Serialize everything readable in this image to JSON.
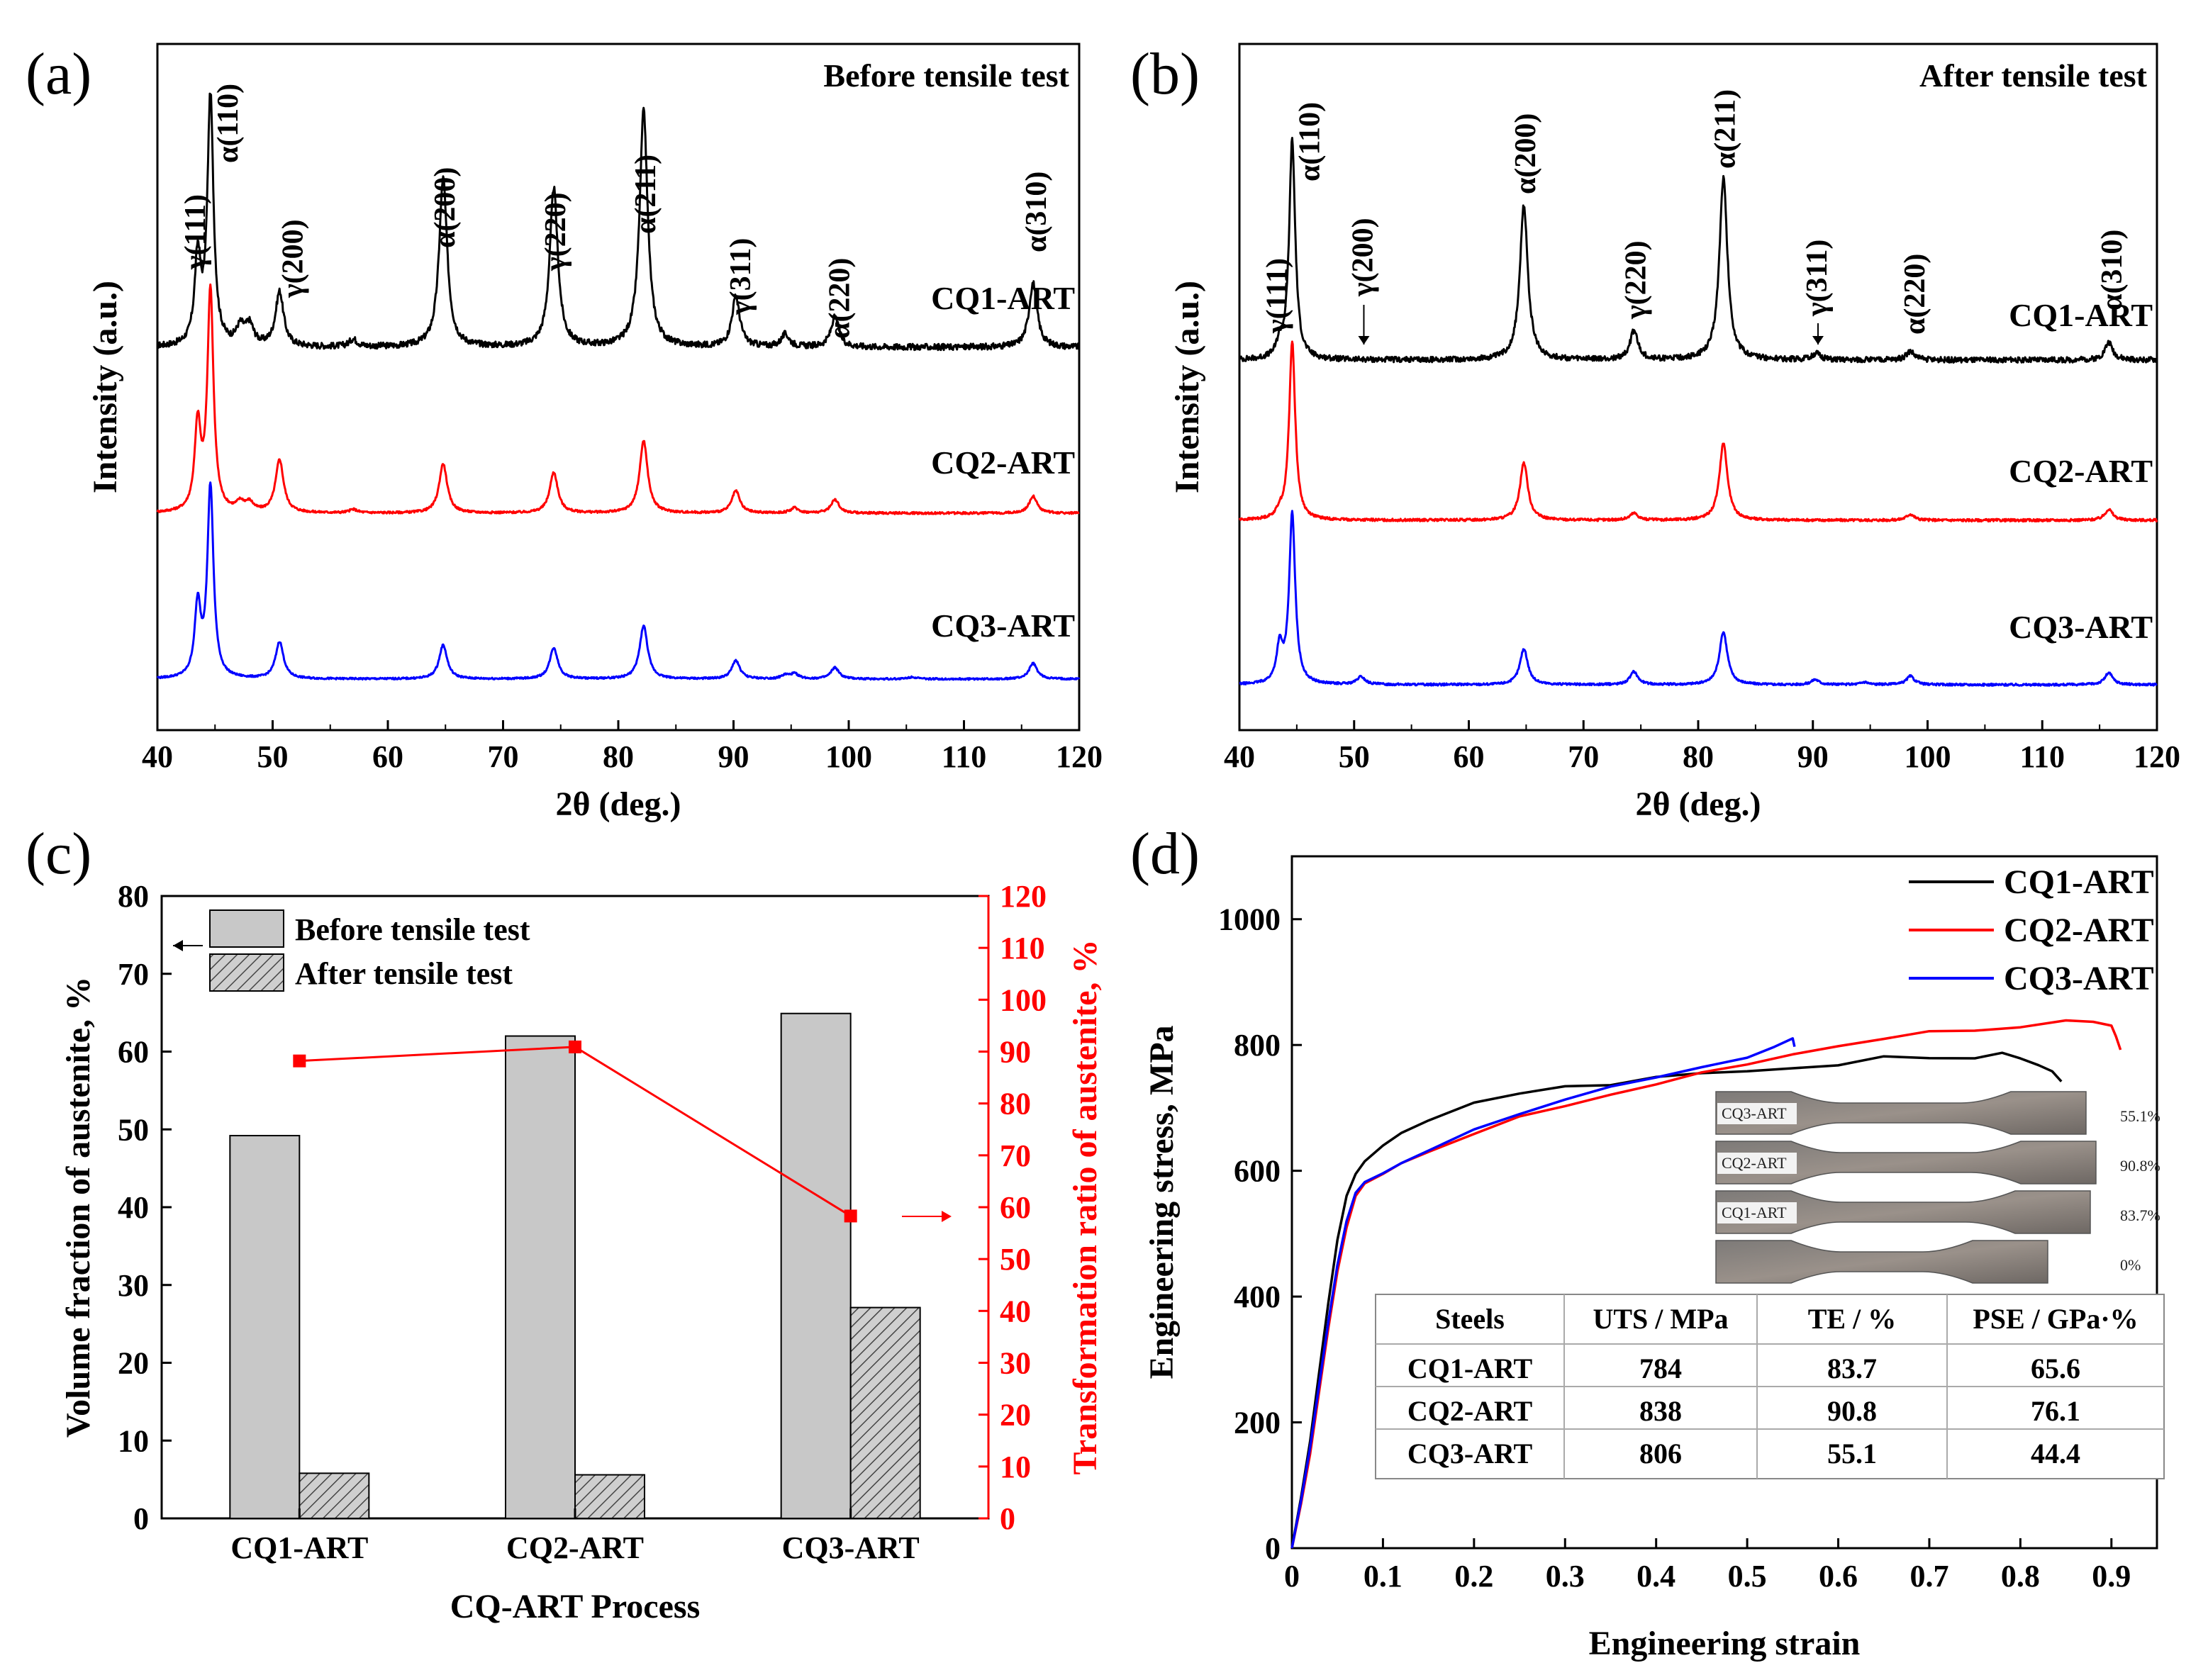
{
  "figure": {
    "panel_letters": [
      "(a)",
      "(b)",
      "(c)",
      "(d)"
    ]
  },
  "chart_data": [
    {
      "id": "a",
      "type": "line",
      "title": "Before tensile test",
      "xlabel": "2θ (deg.)",
      "ylabel": "Intensity (a.u.)",
      "xlim": [
        40,
        120
      ],
      "xticks": [
        40,
        50,
        60,
        70,
        80,
        90,
        100,
        110,
        120
      ],
      "colors": {
        "CQ1-ART": "#000000",
        "CQ2-ART": "#ff0000",
        "CQ3-ART": "#0000ff"
      },
      "series": [
        {
          "name": "CQ1-ART",
          "peaks": [
            [
              43.5,
              0.35
            ],
            [
              44.6,
              1.0
            ],
            [
              47.2,
              0.07
            ],
            [
              48.0,
              0.08
            ],
            [
              50.6,
              0.22
            ],
            [
              57.0,
              0.03
            ],
            [
              64.8,
              0.68
            ],
            [
              74.4,
              0.64
            ],
            [
              82.2,
              0.95
            ],
            [
              90.2,
              0.2
            ],
            [
              94.5,
              0.05
            ],
            [
              98.8,
              0.12
            ],
            [
              116.0,
              0.26
            ]
          ]
        },
        {
          "name": "CQ2-ART",
          "peaks": [
            [
              43.5,
              1.0
            ],
            [
              44.6,
              2.6
            ],
            [
              47.2,
              0.1
            ],
            [
              48.0,
              0.1
            ],
            [
              50.6,
              0.62
            ],
            [
              57.0,
              0.04
            ],
            [
              64.8,
              0.58
            ],
            [
              74.4,
              0.48
            ],
            [
              82.2,
              0.85
            ],
            [
              90.2,
              0.26
            ],
            [
              95.3,
              0.06
            ],
            [
              98.8,
              0.16
            ],
            [
              116.0,
              0.2
            ]
          ]
        },
        {
          "name": "CQ3-ART",
          "peaks": [
            [
              43.5,
              1.0
            ],
            [
              44.6,
              2.7
            ],
            [
              50.6,
              0.52
            ],
            [
              64.8,
              0.48
            ],
            [
              74.4,
              0.44
            ],
            [
              82.2,
              0.75
            ],
            [
              90.2,
              0.26
            ],
            [
              94.5,
              0.05
            ],
            [
              95.3,
              0.07
            ],
            [
              98.8,
              0.16
            ],
            [
              105.5,
              0.03
            ],
            [
              116.0,
              0.22
            ]
          ]
        }
      ],
      "peak_labels": [
        {
          "label": "γ(111)",
          "x": 43.5
        },
        {
          "label": "α(110)",
          "x": 44.6
        },
        {
          "label": "γ(200)",
          "x": 50.6
        },
        {
          "label": "α(200)",
          "x": 64.8
        },
        {
          "label": "γ(220)",
          "x": 74.4
        },
        {
          "label": "α(211)",
          "x": 82.2
        },
        {
          "label": "γ(311)",
          "x": 90.2
        },
        {
          "label": "α(220)",
          "x": 98.8
        },
        {
          "label": "α(310)",
          "x": 116.0
        }
      ]
    },
    {
      "id": "b",
      "type": "line",
      "title": "After tensile test",
      "xlabel": "2θ (deg.)",
      "ylabel": "Intensity (a.u.)",
      "xlim": [
        40,
        120
      ],
      "xticks": [
        40,
        50,
        60,
        70,
        80,
        90,
        100,
        110,
        120
      ],
      "colors": {
        "CQ1-ART": "#000000",
        "CQ2-ART": "#ff0000",
        "CQ3-ART": "#0000ff"
      },
      "series": [
        {
          "name": "CQ1-ART",
          "peaks": [
            [
              43.5,
              0.06
            ],
            [
              44.6,
              1.0
            ],
            [
              64.8,
              0.7
            ],
            [
              74.4,
              0.13
            ],
            [
              82.2,
              0.83
            ],
            [
              90.3,
              0.03
            ],
            [
              98.5,
              0.04
            ],
            [
              115.8,
              0.08
            ]
          ]
        },
        {
          "name": "CQ2-ART",
          "peaks": [
            [
              43.5,
              0.06
            ],
            [
              44.6,
              1.8
            ],
            [
              64.8,
              0.58
            ],
            [
              74.4,
              0.07
            ],
            [
              82.2,
              0.78
            ],
            [
              98.5,
              0.06
            ],
            [
              115.8,
              0.11
            ]
          ]
        },
        {
          "name": "CQ3-ART",
          "peaks": [
            [
              43.5,
              0.42
            ],
            [
              44.6,
              2.0
            ],
            [
              50.6,
              0.09
            ],
            [
              64.8,
              0.42
            ],
            [
              74.4,
              0.15
            ],
            [
              82.2,
              0.62
            ],
            [
              90.2,
              0.06
            ],
            [
              94.5,
              0.03
            ],
            [
              98.5,
              0.1
            ],
            [
              115.8,
              0.14
            ]
          ]
        }
      ],
      "peak_labels": [
        {
          "label": "γ(111)",
          "x": 43.5
        },
        {
          "label": "α(110)",
          "x": 44.6
        },
        {
          "label": "γ(200)",
          "x": 50.6
        },
        {
          "label": "α(200)",
          "x": 64.8
        },
        {
          "label": "γ(220)",
          "x": 74.4
        },
        {
          "label": "α(211)",
          "x": 82.2
        },
        {
          "label": "γ(311)",
          "x": 90.2
        },
        {
          "label": "α(220)",
          "x": 98.5
        },
        {
          "label": "α(310)",
          "x": 115.8
        }
      ]
    },
    {
      "id": "c",
      "type": "bar",
      "title": "",
      "xlabel": "CQ-ART Process",
      "ylabel": "Volume fraction of austenite, %",
      "y2label": "Transformation ratio of austenite, %",
      "ylim": [
        0,
        80
      ],
      "y2lim": [
        0,
        120
      ],
      "yticks": [
        0,
        10,
        20,
        30,
        40,
        50,
        60,
        70,
        80
      ],
      "y2ticks": [
        0,
        10,
        20,
        30,
        40,
        50,
        60,
        70,
        80,
        90,
        100,
        110,
        120
      ],
      "categories": [
        "CQ1-ART",
        "CQ2-ART",
        "CQ3-ART"
      ],
      "series": [
        {
          "name": "Before tensile test",
          "values": [
            49.2,
            62.0,
            64.9
          ]
        },
        {
          "name": "After tensile test",
          "values": [
            5.8,
            5.6,
            27.1
          ]
        }
      ],
      "line_series": {
        "name": "Transformation ratio of austenite, %",
        "values": [
          88.2,
          90.9,
          58.3
        ],
        "color": "#ff0000"
      }
    },
    {
      "id": "d",
      "type": "line",
      "title": "",
      "xlabel": "Engineering strain",
      "ylabel": "Engineering stress, MPa",
      "xlim": [
        0.0,
        0.95
      ],
      "ylim": [
        0,
        1100
      ],
      "xticks": [
        0.0,
        0.1,
        0.2,
        0.3,
        0.4,
        0.5,
        0.6,
        0.7,
        0.8,
        0.9
      ],
      "yticks": [
        0,
        200,
        400,
        600,
        800,
        1000
      ],
      "series": [
        {
          "name": "CQ1-ART",
          "color": "#000000",
          "points": [
            [
              0.0,
              0
            ],
            [
              0.01,
              80
            ],
            [
              0.02,
              170
            ],
            [
              0.03,
              280
            ],
            [
              0.04,
              390
            ],
            [
              0.05,
              490
            ],
            [
              0.06,
              560
            ],
            [
              0.07,
              595
            ],
            [
              0.08,
              615
            ],
            [
              0.1,
              640
            ],
            [
              0.12,
              660
            ],
            [
              0.15,
              680
            ],
            [
              0.2,
              705
            ],
            [
              0.25,
              720
            ],
            [
              0.3,
              730
            ],
            [
              0.35,
              738
            ],
            [
              0.4,
              745
            ],
            [
              0.45,
              752
            ],
            [
              0.5,
              758
            ],
            [
              0.55,
              765
            ],
            [
              0.6,
              772
            ],
            [
              0.65,
              778
            ],
            [
              0.7,
              781
            ],
            [
              0.75,
              783
            ],
            [
              0.78,
              784
            ],
            [
              0.8,
              780
            ],
            [
              0.82,
              770
            ],
            [
              0.835,
              755
            ],
            [
              0.845,
              738
            ]
          ]
        },
        {
          "name": "CQ2-ART",
          "color": "#ff0000",
          "points": [
            [
              0.0,
              0
            ],
            [
              0.01,
              70
            ],
            [
              0.02,
              150
            ],
            [
              0.03,
              250
            ],
            [
              0.04,
              350
            ],
            [
              0.05,
              440
            ],
            [
              0.06,
              510
            ],
            [
              0.07,
              560
            ],
            [
              0.08,
              580
            ],
            [
              0.1,
              595
            ],
            [
              0.12,
              612
            ],
            [
              0.15,
              630
            ],
            [
              0.2,
              660
            ],
            [
              0.25,
              685
            ],
            [
              0.3,
              705
            ],
            [
              0.35,
              725
            ],
            [
              0.4,
              740
            ],
            [
              0.45,
              755
            ],
            [
              0.5,
              770
            ],
            [
              0.55,
              785
            ],
            [
              0.6,
              798
            ],
            [
              0.65,
              808
            ],
            [
              0.7,
              818
            ],
            [
              0.75,
              825
            ],
            [
              0.8,
              830
            ],
            [
              0.85,
              836
            ],
            [
              0.88,
              838
            ],
            [
              0.9,
              828
            ],
            [
              0.905,
              812
            ],
            [
              0.91,
              795
            ]
          ]
        },
        {
          "name": "CQ3-ART",
          "color": "#0000ff",
          "points": [
            [
              0.0,
              0
            ],
            [
              0.01,
              75
            ],
            [
              0.02,
              160
            ],
            [
              0.03,
              260
            ],
            [
              0.04,
              360
            ],
            [
              0.05,
              450
            ],
            [
              0.06,
              520
            ],
            [
              0.07,
              565
            ],
            [
              0.08,
              582
            ],
            [
              0.1,
              596
            ],
            [
              0.12,
              612
            ],
            [
              0.15,
              632
            ],
            [
              0.2,
              662
            ],
            [
              0.25,
              690
            ],
            [
              0.3,
              712
            ],
            [
              0.35,
              730
            ],
            [
              0.4,
              748
            ],
            [
              0.45,
              765
            ],
            [
              0.5,
              782
            ],
            [
              0.53,
              795
            ],
            [
              0.55,
              806
            ],
            [
              0.552,
              798
            ]
          ]
        }
      ],
      "inset_photo": {
        "labels": [
          "CQ3-ART",
          "CQ2-ART",
          "CQ1-ART"
        ],
        "percents": [
          "55.1%",
          "90.8%",
          "83.7%",
          "0%"
        ]
      },
      "table": {
        "headers": [
          "Steels",
          "UTS / MPa",
          "TE / %",
          "PSE / GPa·%"
        ],
        "rows": [
          [
            "CQ1-ART",
            "784",
            "83.7",
            "65.6"
          ],
          [
            "CQ2-ART",
            "838",
            "90.8",
            "76.1"
          ],
          [
            "CQ3-ART",
            "806",
            "55.1",
            "44.4"
          ]
        ]
      }
    }
  ]
}
